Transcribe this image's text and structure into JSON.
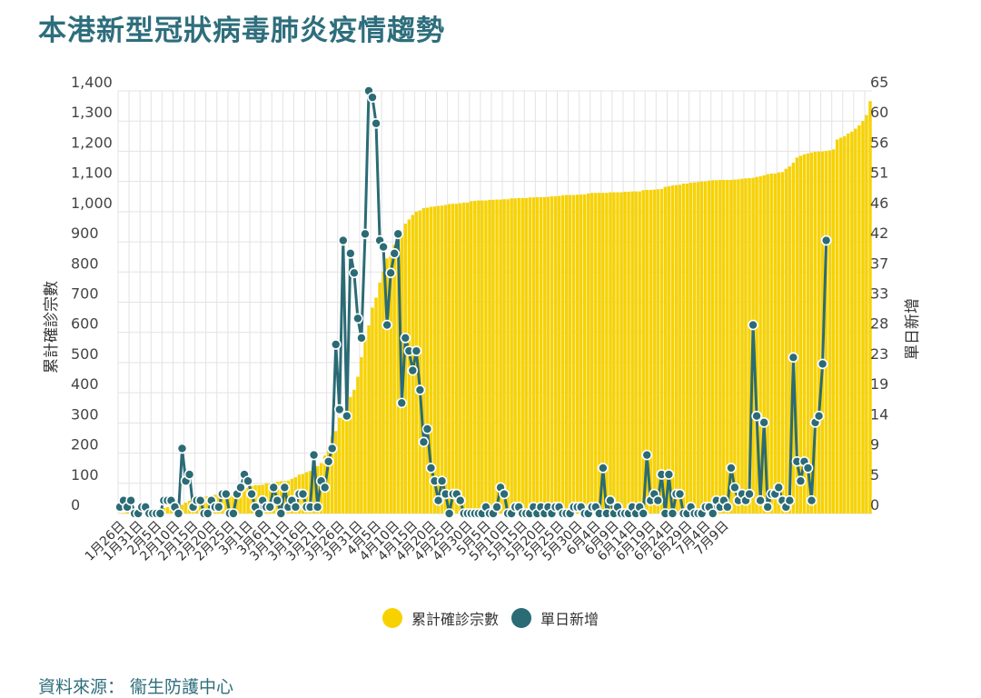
{
  "title": "本港新型冠狀病毒肺炎疫情趨勢",
  "source": "資料來源： 衞生防護中心",
  "colors": {
    "cumulative": "#f7d200",
    "daily": "#2b6b75",
    "grid": "#e3e3e3"
  },
  "chart_data": {
    "type": "bar+line",
    "series": [
      {
        "name": "累計確診宗數",
        "type": "bar",
        "axis": "left",
        "values": [
          1,
          2,
          5,
          8,
          10,
          10,
          12,
          13,
          15,
          15,
          15,
          17,
          18,
          21,
          24,
          25,
          26,
          29,
          36,
          42,
          50,
          53,
          56,
          56,
          57,
          60,
          62,
          62,
          65,
          68,
          69,
          70,
          74,
          77,
          81,
          85,
          91,
          94,
          94,
          95,
          100,
          100,
          104,
          105,
          107,
          107,
          109,
          115,
          120,
          129,
          131,
          137,
          141,
          149,
          157,
          167,
          192,
          208,
          256,
          273,
          317,
          336,
          357,
          386,
          410,
          453,
          518,
          582,
          623,
          682,
          715,
          765,
          802,
          845,
          862,
          890,
          914,
          935,
          960,
          974,
          989,
          1000,
          1004,
          1012,
          1013,
          1016,
          1017,
          1019,
          1020,
          1022,
          1025,
          1026,
          1026,
          1028,
          1030,
          1030,
          1035,
          1036,
          1037,
          1037,
          1037,
          1039,
          1039,
          1040,
          1040,
          1041,
          1041,
          1044,
          1044,
          1045,
          1045,
          1045,
          1047,
          1047,
          1048,
          1048,
          1048,
          1049,
          1051,
          1051,
          1052,
          1054,
          1055,
          1055,
          1055,
          1056,
          1057,
          1057,
          1060,
          1062,
          1062,
          1062,
          1062,
          1062,
          1064,
          1064,
          1064,
          1064,
          1066,
          1066,
          1067,
          1067,
          1067,
          1071,
          1072,
          1072,
          1073,
          1074,
          1075,
          1082,
          1084,
          1087,
          1088,
          1089,
          1093,
          1093,
          1096,
          1097,
          1098,
          1100,
          1100,
          1103,
          1104,
          1104,
          1105,
          1105,
          1105,
          1105,
          1106,
          1107,
          1109,
          1110,
          1111,
          1112,
          1115,
          1117,
          1120,
          1124,
          1126,
          1126,
          1130,
          1131,
          1142,
          1150,
          1162,
          1179,
          1185,
          1190,
          1193,
          1196,
          1198,
          1199,
          1199,
          1201,
          1203,
          1206,
          1239,
          1245,
          1250,
          1259,
          1265,
          1275,
          1286,
          1300,
          1320,
          1366
        ]
      },
      {
        "name": "單日新增",
        "type": "line",
        "axis": "right",
        "values": [
          1,
          2,
          1,
          2,
          0,
          0,
          1,
          1,
          0,
          0,
          0,
          0,
          2,
          2,
          2,
          1,
          0,
          10,
          5,
          6,
          1,
          2,
          2,
          0,
          0,
          2,
          1,
          1,
          3,
          3,
          0,
          0,
          3,
          4,
          6,
          5,
          3,
          1,
          0,
          2,
          1,
          1,
          4,
          2,
          0,
          4,
          1,
          2,
          1,
          3,
          3,
          1,
          1,
          9,
          1,
          5,
          4,
          8,
          10,
          26,
          16,
          42,
          15,
          40,
          37,
          30,
          27,
          43,
          65,
          64,
          60,
          42,
          41,
          29,
          37,
          40,
          43,
          17,
          27,
          25,
          22,
          25,
          19,
          11,
          13,
          7,
          5,
          2,
          5,
          3,
          0,
          3,
          3,
          2,
          0,
          0,
          0,
          0,
          0,
          0,
          1,
          0,
          0,
          1,
          4,
          3,
          0,
          0,
          1,
          1,
          0,
          0,
          0,
          1,
          0,
          1,
          0,
          1,
          0,
          1,
          1,
          0,
          0,
          0,
          1,
          1,
          1,
          0,
          0,
          1,
          1,
          0,
          7,
          0,
          2,
          0,
          1,
          0,
          0,
          0,
          1,
          0,
          1,
          0,
          9,
          2,
          3,
          2,
          6,
          0,
          6,
          0,
          3,
          3,
          0,
          0,
          1,
          0,
          0,
          0,
          1,
          1,
          0,
          2,
          1,
          2,
          1,
          7,
          4,
          2,
          3,
          2,
          3,
          29,
          15,
          2,
          14,
          1,
          3,
          3,
          4,
          2,
          1,
          2,
          24,
          8,
          5,
          8,
          7,
          2,
          14,
          15,
          23,
          42
        ]
      }
    ],
    "left_axis": {
      "ticks": [
        "0",
        "100",
        "200",
        "300",
        "400",
        "500",
        "600",
        "700",
        "800",
        "900",
        "1,000",
        "1,100",
        "1,200",
        "1,300",
        "1,400"
      ],
      "min": 0,
      "max": 1400,
      "title": "累計確診宗數"
    },
    "right_axis": {
      "ticks": [
        "0",
        "5",
        "9",
        "14",
        "19",
        "23",
        "28",
        "33",
        "37",
        "42",
        "46",
        "51",
        "56",
        "60",
        "65"
      ],
      "min": 0,
      "max": 65,
      "title": "單日新增"
    },
    "x_labels": [
      "1月26日",
      "1月31日",
      "2月5日",
      "2月10日",
      "2月15日",
      "2月20日",
      "2月25日",
      "3月1日",
      "3月6日",
      "3月11日",
      "3月16日",
      "3月21日",
      "3月26日",
      "3月31日",
      "4月5日",
      "4月10日",
      "4月15日",
      "4月20日",
      "4月25日",
      "4月30日",
      "5月5日",
      "5月10日",
      "5月15日",
      "5月20日",
      "5月25日",
      "5月30日",
      "6月4日",
      "6月9日",
      "6月14日",
      "6月19日",
      "6月24日",
      "6月29日",
      "7月4日",
      "7月9日"
    ],
    "x_label_step_days": 5,
    "grid": true,
    "legend_position": "bottom"
  }
}
